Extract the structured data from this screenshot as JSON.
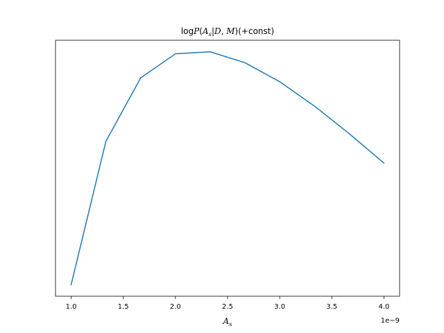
{
  "chart_data": {
    "type": "line",
    "title": "logP(A_s|D, M)(+const)",
    "title_parts": {
      "prefix": "log",
      "p": "P",
      "open": "(",
      "a": "A",
      "sub": "s",
      "bar": "|",
      "d": "D",
      "comma": ", ",
      "m": "M",
      "close": ")",
      "suffix": "(+const)"
    },
    "xlabel": "A_s",
    "xlabel_parts": {
      "main": "A",
      "sub": "s"
    },
    "x_offset_text": "1e−9",
    "xlim": [
      0.85,
      4.15
    ],
    "ylim": [
      0.0,
      1.0
    ],
    "y_ticks_shown": false,
    "x_ticks": [
      1.0,
      1.5,
      2.0,
      2.5,
      3.0,
      3.5,
      4.0
    ],
    "x_tick_labels": [
      "1.0",
      "1.5",
      "2.0",
      "2.5",
      "3.0",
      "3.5",
      "4.0"
    ],
    "line_color": "#1f77b4",
    "series": [
      {
        "x": [
          1.0,
          1.333,
          1.667,
          2.0,
          2.333,
          2.667,
          3.0,
          3.333,
          3.667,
          4.0
        ],
        "y": [
          0.045,
          0.605,
          0.853,
          0.947,
          0.955,
          0.912,
          0.838,
          0.743,
          0.635,
          0.52
        ]
      }
    ]
  }
}
